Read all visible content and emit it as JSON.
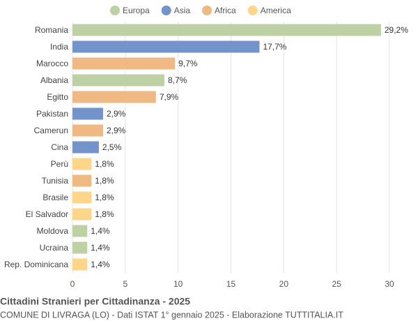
{
  "chart_data": {
    "type": "bar",
    "title": "Cittadini Stranieri per Cittadinanza - 2025",
    "subtitle": "COMUNE DI LIVRAGA (LO) - Dati ISTAT 1° gennaio 2025 - Elaborazione TUTTITALIA.IT",
    "legend": [
      {
        "name": "Europa",
        "color": "#bdd1a5"
      },
      {
        "name": "Asia",
        "color": "#7393cb"
      },
      {
        "name": "Africa",
        "color": "#f0b883"
      },
      {
        "name": "America",
        "color": "#fdd68c"
      }
    ],
    "categories": [
      "Romania",
      "India",
      "Marocco",
      "Albania",
      "Egitto",
      "Pakistan",
      "Camerun",
      "Cina",
      "Perù",
      "Tunisia",
      "Brasile",
      "El Salvador",
      "Moldova",
      "Ucraina",
      "Rep. Dominicana"
    ],
    "values": [
      29.2,
      17.7,
      9.7,
      8.7,
      7.9,
      2.9,
      2.9,
      2.5,
      1.8,
      1.8,
      1.8,
      1.8,
      1.4,
      1.4,
      1.4
    ],
    "value_labels": [
      "29,2%",
      "17,7%",
      "9,7%",
      "8,7%",
      "7,9%",
      "2,9%",
      "2,9%",
      "2,5%",
      "1,8%",
      "1,8%",
      "1,8%",
      "1,8%",
      "1,4%",
      "1,4%",
      "1,4%"
    ],
    "colors": [
      "#bdd1a5",
      "#7393cb",
      "#f0b883",
      "#bdd1a5",
      "#f0b883",
      "#7393cb",
      "#f0b883",
      "#7393cb",
      "#fdd68c",
      "#f0b883",
      "#fdd68c",
      "#fdd68c",
      "#bdd1a5",
      "#bdd1a5",
      "#fdd68c"
    ],
    "xlim": [
      0,
      30
    ],
    "xticks": [
      0,
      5,
      10,
      15,
      20,
      25,
      30
    ],
    "grid": true
  }
}
